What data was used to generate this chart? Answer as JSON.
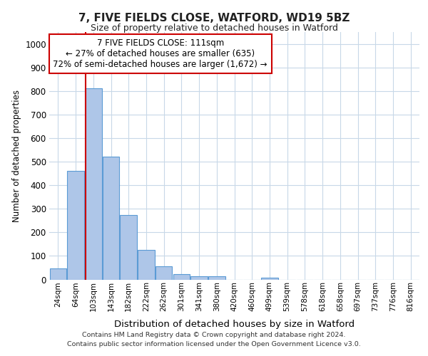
{
  "title1": "7, FIVE FIELDS CLOSE, WATFORD, WD19 5BZ",
  "title2": "Size of property relative to detached houses in Watford",
  "xlabel": "Distribution of detached houses by size in Watford",
  "ylabel": "Number of detached properties",
  "footer1": "Contains HM Land Registry data © Crown copyright and database right 2024.",
  "footer2": "Contains public sector information licensed under the Open Government Licence v3.0.",
  "annotation_line1": "7 FIVE FIELDS CLOSE: 111sqm",
  "annotation_line2": "← 27% of detached houses are smaller (635)",
  "annotation_line3": "72% of semi-detached houses are larger (1,672) →",
  "bar_color": "#aec6e8",
  "bar_edge_color": "#5b9bd5",
  "vline_color": "#cc0000",
  "categories": [
    "24sqm",
    "64sqm",
    "103sqm",
    "143sqm",
    "182sqm",
    "222sqm",
    "262sqm",
    "301sqm",
    "341sqm",
    "380sqm",
    "420sqm",
    "460sqm",
    "499sqm",
    "539sqm",
    "578sqm",
    "618sqm",
    "658sqm",
    "697sqm",
    "737sqm",
    "776sqm",
    "816sqm"
  ],
  "values": [
    46,
    460,
    810,
    520,
    272,
    125,
    57,
    22,
    13,
    13,
    0,
    0,
    8,
    0,
    0,
    0,
    0,
    0,
    0,
    0,
    0
  ],
  "ylim": [
    0,
    1050
  ],
  "yticks": [
    0,
    100,
    200,
    300,
    400,
    500,
    600,
    700,
    800,
    900,
    1000
  ],
  "vline_x_index": 2,
  "bg_color": "#ffffff",
  "grid_color": "#c8d8e8"
}
